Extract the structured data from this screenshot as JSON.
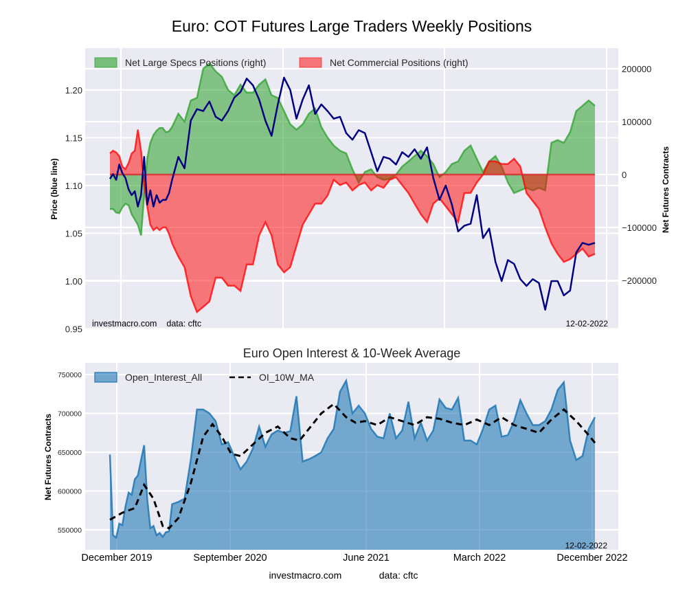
{
  "chart_data": [
    {
      "type": "area",
      "title": "Euro: COT Futures Large Traders Weekly Positions",
      "ylabel_left": "Price (blue line)",
      "ylabel_right": "Net Futures Contracts",
      "ylim_left": [
        0.95,
        1.235
      ],
      "ylim_right": [
        -290000,
        235000
      ],
      "left_ticks": [
        "0.95",
        "1.00",
        "1.05",
        "1.10",
        "1.15",
        "1.20"
      ],
      "left_tick_values": [
        0.95,
        1.0,
        1.05,
        1.1,
        1.15,
        1.2
      ],
      "right_ticks": [
        "−200000",
        "−100000",
        "0",
        "100000",
        "200000"
      ],
      "right_tick_values": [
        -200000,
        -100000,
        0,
        100000,
        200000
      ],
      "legend_placement": "top-left",
      "grid": true,
      "watermark": "investmacro.com    data: cftc",
      "date_stamp": "12-02-2022",
      "x_start": "2019-11-26",
      "x_end": "2022-12-02",
      "series": [
        {
          "name": "Net Large Specs Positions (right)",
          "kind": "fill",
          "color": "#2ca02c",
          "x": [
            0,
            1,
            2,
            3,
            4,
            5,
            6,
            7,
            8,
            9,
            10,
            11,
            12,
            13,
            14,
            15,
            16,
            17,
            18,
            19,
            20,
            22,
            24,
            26,
            28,
            30,
            32,
            34,
            36,
            38,
            40,
            42,
            44,
            46,
            48,
            50,
            52,
            54,
            56,
            58,
            60,
            62,
            64,
            66,
            68,
            70,
            72,
            74,
            76,
            78,
            80,
            82,
            84,
            86,
            88,
            90,
            92,
            94,
            96,
            98,
            100,
            102,
            104,
            106,
            108,
            110,
            112,
            114,
            116,
            118,
            120,
            122,
            124,
            126,
            128,
            130,
            132,
            134,
            136,
            138,
            140,
            142,
            144,
            146,
            148,
            150,
            152,
            154,
            156
          ],
          "values": [
            -65000,
            -65000,
            -72000,
            -73000,
            -62000,
            -55000,
            -58000,
            -75000,
            -85000,
            -95000,
            -115000,
            -40000,
            30000,
            60000,
            75000,
            83000,
            88000,
            88000,
            80000,
            82000,
            90000,
            115000,
            100000,
            140000,
            145000,
            200000,
            210000,
            195000,
            185000,
            160000,
            150000,
            170000,
            155000,
            155000,
            170000,
            180000,
            150000,
            145000,
            120000,
            95000,
            85000,
            95000,
            115000,
            125000,
            90000,
            70000,
            55000,
            45000,
            40000,
            10000,
            -15000,
            5000,
            10000,
            -5000,
            -10000,
            -8000,
            0,
            15000,
            25000,
            35000,
            45000,
            35000,
            20000,
            -5000,
            5000,
            20000,
            25000,
            45000,
            55000,
            30000,
            5000,
            25000,
            35000,
            15000,
            -15000,
            -35000,
            -30000,
            -25000,
            -30000,
            -25000,
            -30000,
            60000,
            65000,
            60000,
            80000,
            120000,
            130000,
            140000,
            130000
          ],
          "note": "weekly index from 2019-11-26"
        },
        {
          "name": "Net Commercial Positions (right)",
          "kind": "fill",
          "color": "#ff0000",
          "x": [
            0,
            1,
            2,
            3,
            4,
            5,
            6,
            7,
            8,
            9,
            10,
            11,
            12,
            13,
            14,
            15,
            16,
            17,
            18,
            19,
            20,
            22,
            24,
            26,
            28,
            30,
            32,
            34,
            36,
            38,
            40,
            42,
            44,
            46,
            48,
            50,
            52,
            54,
            56,
            58,
            60,
            62,
            64,
            66,
            68,
            70,
            72,
            74,
            76,
            78,
            80,
            82,
            84,
            86,
            88,
            90,
            92,
            94,
            96,
            98,
            100,
            102,
            104,
            106,
            108,
            110,
            112,
            114,
            116,
            118,
            120,
            122,
            124,
            126,
            128,
            130,
            132,
            134,
            136,
            138,
            140,
            142,
            144,
            146,
            148,
            150,
            152,
            154,
            156
          ],
          "values": [
            40000,
            45000,
            42000,
            35000,
            15000,
            10000,
            22000,
            40000,
            45000,
            85000,
            45000,
            -20000,
            -60000,
            -95000,
            -105000,
            -100000,
            -105000,
            -100000,
            -100000,
            -112000,
            -130000,
            -155000,
            -175000,
            -230000,
            -260000,
            -250000,
            -240000,
            -195000,
            -195000,
            -210000,
            -210000,
            -220000,
            -170000,
            -170000,
            -115000,
            -90000,
            -115000,
            -170000,
            -185000,
            -175000,
            -135000,
            -95000,
            -75000,
            -55000,
            -55000,
            -40000,
            -10000,
            -20000,
            -15000,
            -30000,
            -20000,
            -15000,
            -30000,
            -20000,
            -25000,
            -10000,
            -5000,
            -20000,
            -35000,
            -55000,
            -75000,
            -90000,
            -55000,
            -45000,
            -60000,
            -75000,
            -90000,
            -35000,
            -35000,
            -15000,
            0,
            25000,
            25000,
            20000,
            20000,
            30000,
            15000,
            -35000,
            -50000,
            -65000,
            -100000,
            -130000,
            -150000,
            -165000,
            -160000,
            -150000,
            -140000,
            -155000,
            -150000
          ],
          "note": "weekly index from 2019-11-26"
        },
        {
          "name": "Price (blue line)",
          "kind": "line",
          "color": "#000080",
          "x": [
            0,
            1,
            2,
            3,
            4,
            5,
            6,
            7,
            8,
            9,
            10,
            11,
            12,
            13,
            14,
            15,
            16,
            17,
            18,
            19,
            20,
            22,
            24,
            26,
            28,
            30,
            32,
            34,
            36,
            38,
            40,
            42,
            44,
            46,
            48,
            50,
            52,
            54,
            56,
            58,
            60,
            62,
            64,
            66,
            68,
            70,
            72,
            74,
            76,
            78,
            80,
            82,
            84,
            86,
            88,
            90,
            92,
            94,
            96,
            98,
            100,
            102,
            104,
            106,
            108,
            110,
            112,
            114,
            116,
            118,
            120,
            122,
            124,
            126,
            128,
            130,
            132,
            134,
            136,
            138,
            140,
            142,
            144,
            146,
            148,
            150,
            152,
            154,
            156
          ],
          "values": [
            1.107,
            1.112,
            1.106,
            1.122,
            1.113,
            1.108,
            1.096,
            1.09,
            1.094,
            1.078,
            1.09,
            1.13,
            1.08,
            1.095,
            1.078,
            1.09,
            1.082,
            1.085,
            1.085,
            1.092,
            1.106,
            1.13,
            1.118,
            1.168,
            1.18,
            1.178,
            1.188,
            1.172,
            1.168,
            1.178,
            1.192,
            1.198,
            1.212,
            1.205,
            1.19,
            1.168,
            1.152,
            1.185,
            1.213,
            1.2,
            1.17,
            1.19,
            1.205,
            1.175,
            1.185,
            1.178,
            1.17,
            1.172,
            1.155,
            1.148,
            1.158,
            1.155,
            1.135,
            1.115,
            1.13,
            1.128,
            1.122,
            1.135,
            1.13,
            1.138,
            1.128,
            1.14,
            1.108,
            1.085,
            1.1,
            1.08,
            1.052,
            1.058,
            1.06,
            1.09,
            1.045,
            1.055,
            1.02,
            1.0,
            1.022,
            1.018,
            1.002,
            0.995,
            1.002,
            0.998,
            0.97,
            1.0,
            1.0,
            0.985,
            0.99,
            1.03,
            1.04,
            1.038,
            1.04
          ],
          "note": "weekly index from 2019-11-26"
        }
      ]
    },
    {
      "type": "area",
      "title": "Euro Open Interest & 10-Week Average",
      "ylabel": "Net Futures Contracts",
      "ylim": [
        524000,
        762000
      ],
      "y_ticks": [
        "550000",
        "600000",
        "650000",
        "700000",
        "750000"
      ],
      "y_tick_values": [
        550000,
        600000,
        650000,
        700000,
        750000
      ],
      "categories": [
        "December 2019",
        "September 2020",
        "June 2021",
        "March 2022",
        "December 2022"
      ],
      "legend_placement": "top-left",
      "grid": true,
      "watermark": "investmacro.com              data: cftc",
      "date_stamp": "12-02-2022",
      "x_start": "2019-11-26",
      "x_end": "2022-12-02",
      "series": [
        {
          "name": "Open_Interest_All",
          "kind": "fill",
          "color": "#1f77b4",
          "x": [
            0,
            1,
            2,
            3,
            4,
            5,
            6,
            7,
            8,
            9,
            10,
            11,
            12,
            13,
            14,
            15,
            16,
            17,
            18,
            19,
            20,
            22,
            24,
            26,
            28,
            30,
            32,
            34,
            36,
            38,
            40,
            42,
            44,
            46,
            48,
            50,
            52,
            54,
            56,
            58,
            60,
            62,
            64,
            66,
            68,
            70,
            72,
            74,
            76,
            78,
            80,
            82,
            84,
            86,
            88,
            90,
            92,
            94,
            96,
            98,
            100,
            102,
            104,
            106,
            108,
            110,
            112,
            114,
            116,
            118,
            120,
            122,
            124,
            126,
            128,
            130,
            132,
            134,
            136,
            138,
            140,
            142,
            144,
            146,
            148,
            150,
            152,
            154,
            156
          ],
          "values": [
            647000,
            543000,
            540000,
            558000,
            556000,
            580000,
            598000,
            595000,
            615000,
            620000,
            640000,
            659000,
            590000,
            552000,
            555000,
            543000,
            546000,
            541000,
            547000,
            548000,
            583000,
            586000,
            590000,
            640000,
            705000,
            705000,
            700000,
            690000,
            660000,
            663000,
            645000,
            628000,
            638000,
            655000,
            683000,
            657000,
            673000,
            678000,
            675000,
            677000,
            722000,
            638000,
            641000,
            645000,
            650000,
            668000,
            680000,
            728000,
            742000,
            700000,
            710000,
            700000,
            680000,
            670000,
            668000,
            700000,
            668000,
            678000,
            715000,
            668000,
            688000,
            665000,
            678000,
            718000,
            707000,
            705000,
            720000,
            665000,
            665000,
            660000,
            680000,
            705000,
            710000,
            670000,
            672000,
            690000,
            717000,
            700000,
            685000,
            685000,
            690000,
            705000,
            730000,
            740000,
            665000,
            640000,
            645000,
            680000,
            695000
          ],
          "note": "weekly index from 2019-11-26"
        },
        {
          "name": "OI_10W_MA",
          "kind": "dashed-line",
          "color": "#000000",
          "x": [
            0,
            4,
            8,
            11,
            14,
            17,
            19,
            22,
            26,
            30,
            33,
            36,
            39,
            42,
            46,
            50,
            54,
            58,
            61,
            64,
            68,
            72,
            76,
            79,
            82,
            86,
            90,
            94,
            98,
            102,
            106,
            110,
            114,
            118,
            122,
            126,
            130,
            134,
            138,
            142,
            146,
            150,
            154,
            156
          ],
          "values": [
            563000,
            572000,
            578000,
            608000,
            590000,
            555000,
            552000,
            565000,
            610000,
            670000,
            686000,
            670000,
            648000,
            645000,
            660000,
            675000,
            683000,
            668000,
            665000,
            680000,
            700000,
            712000,
            695000,
            688000,
            690000,
            685000,
            695000,
            690000,
            685000,
            695000,
            693000,
            688000,
            685000,
            692000,
            685000,
            695000,
            685000,
            680000,
            675000,
            692000,
            705000,
            690000,
            672000,
            662000
          ],
          "note": "weekly index from 2019-11-26"
        }
      ]
    }
  ]
}
